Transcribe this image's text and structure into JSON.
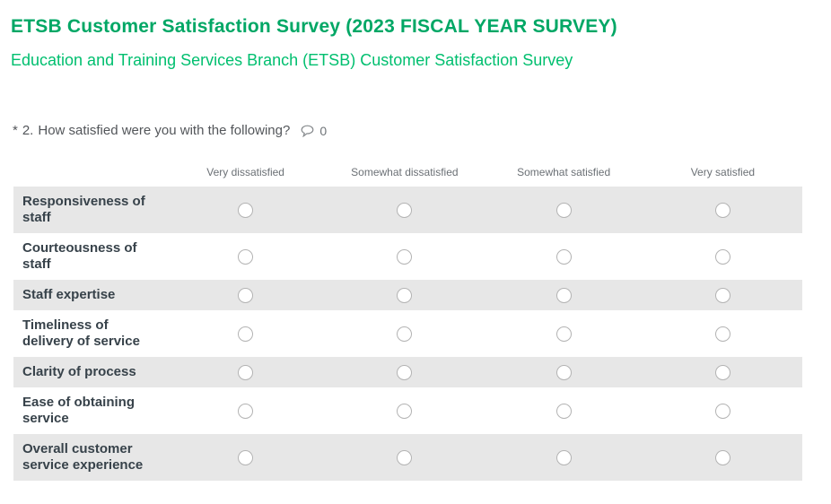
{
  "header": {
    "title": "ETSB Customer Satisfaction Survey (2023 FISCAL YEAR SURVEY)",
    "subtitle": "Education and Training Services Branch (ETSB) Customer Satisfaction Survey",
    "title_color": "#00a765",
    "subtitle_color": "#00bf6f"
  },
  "question": {
    "required_marker": "*",
    "number": "2.",
    "text": "How satisfied were you with the following?",
    "comment_icon": "speech-bubble-icon",
    "comment_count": "0"
  },
  "matrix": {
    "columns": [
      "Very dissatisfied",
      "Somewhat dissatisfied",
      "Somewhat satisfied",
      "Very satisfied"
    ],
    "rows": [
      {
        "label": "Responsiveness of staff"
      },
      {
        "label": "Courteousness of staff"
      },
      {
        "label": "Staff expertise"
      },
      {
        "label": "Timeliness of delivery of service"
      },
      {
        "label": "Clarity of process"
      },
      {
        "label": "Ease of obtaining service"
      },
      {
        "label": "Overall customer service experience"
      }
    ],
    "radio_state": "unselected",
    "alt_row_color": "#e7e7e7"
  }
}
